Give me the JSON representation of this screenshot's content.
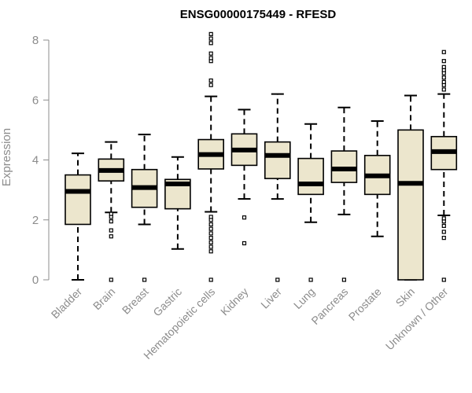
{
  "chart_data": {
    "type": "boxplot",
    "title": "ENSG00000175449 - RFESD",
    "xlabel": "",
    "ylabel": "Expression",
    "ylim": [
      0,
      8
    ],
    "yticks": [
      0,
      2,
      4,
      6,
      8
    ],
    "box_color": "#ece6cd",
    "categories": [
      "Bladder",
      "Brain",
      "Breast",
      "Gastric",
      "Hematopoietic cells",
      "Kidney",
      "Liver",
      "Lung",
      "Pancreas",
      "Prostate",
      "Skin",
      "Unknown / Other"
    ],
    "boxes": [
      {
        "q1": 1.85,
        "median": 2.95,
        "q3": 3.5,
        "whisker_low": 0.0,
        "whisker_high": 4.22,
        "outliers": []
      },
      {
        "q1": 3.3,
        "median": 3.65,
        "q3": 4.03,
        "whisker_low": 2.25,
        "whisker_high": 4.6,
        "outliers": [
          0.0,
          1.45,
          1.65,
          1.95,
          2.1,
          2.2
        ]
      },
      {
        "q1": 2.42,
        "median": 3.08,
        "q3": 3.68,
        "whisker_low": 1.85,
        "whisker_high": 4.85,
        "outliers": [
          0.0
        ]
      },
      {
        "q1": 2.37,
        "median": 3.2,
        "q3": 3.35,
        "whisker_low": 1.03,
        "whisker_high": 4.1,
        "outliers": []
      },
      {
        "q1": 3.7,
        "median": 4.18,
        "q3": 4.68,
        "whisker_low": 2.27,
        "whisker_high": 6.12,
        "outliers": [
          0.0,
          0.95,
          1.1,
          1.25,
          1.4,
          1.55,
          1.7,
          1.85,
          2.0,
          2.1,
          6.5,
          6.65,
          7.3,
          7.4,
          7.55,
          7.9,
          8.05,
          8.2
        ]
      },
      {
        "q1": 3.82,
        "median": 4.33,
        "q3": 4.87,
        "whisker_low": 2.7,
        "whisker_high": 5.68,
        "outliers": [
          1.22,
          2.08
        ]
      },
      {
        "q1": 3.38,
        "median": 4.15,
        "q3": 4.6,
        "whisker_low": 2.7,
        "whisker_high": 6.2,
        "outliers": [
          0.0
        ]
      },
      {
        "q1": 2.85,
        "median": 3.2,
        "q3": 4.05,
        "whisker_low": 1.92,
        "whisker_high": 5.2,
        "outliers": [
          0.0
        ]
      },
      {
        "q1": 3.25,
        "median": 3.7,
        "q3": 4.3,
        "whisker_low": 2.18,
        "whisker_high": 5.75,
        "outliers": [
          0.0
        ]
      },
      {
        "q1": 2.85,
        "median": 3.47,
        "q3": 4.15,
        "whisker_low": 1.45,
        "whisker_high": 5.3,
        "outliers": []
      },
      {
        "q1": 0.0,
        "median": 3.22,
        "q3": 5.0,
        "whisker_low": 0.0,
        "whisker_high": 6.15,
        "outliers": []
      },
      {
        "q1": 3.68,
        "median": 4.28,
        "q3": 4.78,
        "whisker_low": 2.15,
        "whisker_high": 6.2,
        "outliers": [
          0.0,
          1.4,
          1.6,
          1.8,
          1.95,
          2.05,
          6.35,
          6.5,
          6.6,
          6.75,
          6.9,
          7.0,
          7.1,
          7.3,
          7.6
        ]
      }
    ]
  }
}
